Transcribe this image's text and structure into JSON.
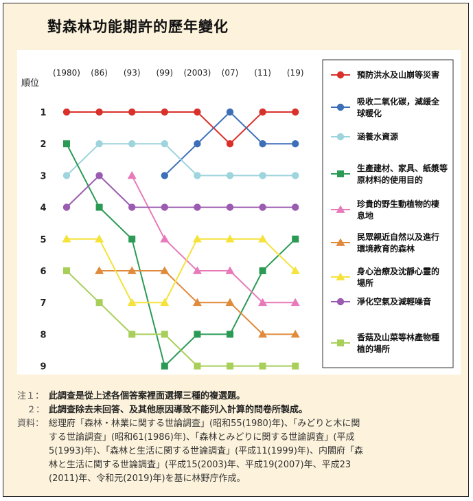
{
  "title": "對森林功能期許的歷年變化",
  "chart_data": {
    "type": "line",
    "ylabel": "順位",
    "x": [
      "(1980)",
      "(86)",
      "(93)",
      "(99)",
      "(2003)",
      "(07)",
      "(11)",
      "(19)"
    ],
    "y_ticks": [
      "1",
      "2",
      "3",
      "4",
      "5",
      "6",
      "7",
      "8",
      "9"
    ],
    "ylim": [
      1,
      9
    ],
    "y_inverted": true,
    "legend_position": "right",
    "series": [
      {
        "name": "預防洪水及山崩等災害",
        "color": "#d9302a",
        "marker": "circle",
        "values": [
          1,
          1,
          1,
          1,
          1,
          2,
          1,
          1
        ]
      },
      {
        "name": "吸收二氧化碳，減緩全球暖化",
        "color": "#3d6fb8",
        "marker": "circle",
        "values": [
          null,
          null,
          null,
          3,
          2,
          1,
          2,
          2
        ]
      },
      {
        "name": "涵養水資源",
        "color": "#9ed4dc",
        "marker": "circle",
        "values": [
          3,
          2,
          2,
          2,
          3,
          3,
          3,
          3
        ]
      },
      {
        "name": "生產建材、家具、紙漿等原材料的使用目的",
        "color": "#2a9a55",
        "marker": "square",
        "values": [
          2,
          4,
          5,
          9,
          8,
          8,
          6,
          5
        ]
      },
      {
        "name": "珍貴的野生動植物的棲息地",
        "color": "#e77ab8",
        "marker": "triangle",
        "values": [
          null,
          null,
          3,
          5,
          6,
          6,
          7,
          7
        ]
      },
      {
        "name": "民眾親近自然以及進行環境教育的森林",
        "color": "#e08a3c",
        "marker": "triangle",
        "values": [
          null,
          6,
          6,
          6,
          7,
          7,
          8,
          8
        ]
      },
      {
        "name": "身心治療及沈靜心靈的場所",
        "color": "#f5e23a",
        "marker": "triangle",
        "values": [
          5,
          5,
          7,
          7,
          5,
          5,
          5,
          6
        ]
      },
      {
        "name": "淨化空氣及減輕噪音",
        "color": "#9a5bb0",
        "marker": "circle",
        "values": [
          4,
          3,
          4,
          4,
          4,
          4,
          4,
          4
        ]
      },
      {
        "name": "香菇及山菜等林產物種植的場所",
        "color": "#a8cf5a",
        "marker": "square",
        "values": [
          6,
          7,
          8,
          8,
          9,
          9,
          9,
          9
        ]
      }
    ],
    "legend_labels": [
      [
        "預防洪水及山崩等災害"
      ],
      [
        "吸收二氧化碳，減緩全",
        "球暖化"
      ],
      [
        "涵養水資源"
      ],
      [
        "生產建材、家具、紙漿等",
        "原材料的使用目的"
      ],
      [
        "珍貴的野生動植物的棲",
        "息地"
      ],
      [
        "民眾親近自然以及進行",
        "環境教育的森林"
      ],
      [
        "身心治療及沈靜心靈的",
        "場所"
      ],
      [
        "淨化空氣及減輕噪音"
      ],
      [
        "香菇及山菜等林產物種",
        "植的場所"
      ]
    ]
  },
  "notes": [
    {
      "key": "注１：",
      "text": "此調查是從上述各個答案裡面選擇三種的複選題。"
    },
    {
      "key": "２：",
      "text": "此調查除去未回答、及其他原因導致不能列入計算的問卷所製成。"
    }
  ],
  "source": {
    "key": "資料：",
    "lines": [
      "総理府「森林・林業に関する世論調査」(昭和55(1980)年)、「みどりと木に関",
      "する世論調査」(昭和61(1986)年)、「森林とみどりに関する世論調査」(平成",
      "5(1993)年)、「森林と生活に関する世論調査」(平成11(1999)年)、内閣府「森",
      "林と生活に関する世論調査」(平成15(2003)年、平成19(2007)年、平成23",
      "(2011)年、令和元(2019)年)を基に林野庁作成。"
    ]
  }
}
